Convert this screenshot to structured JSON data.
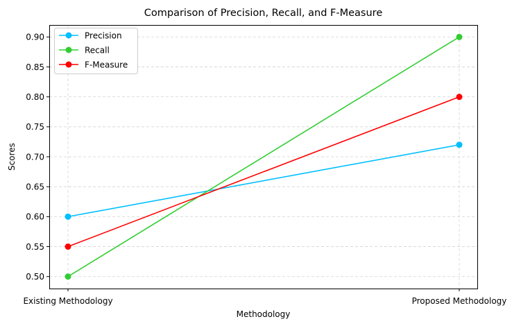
{
  "chart_data": {
    "type": "line",
    "title": "Comparison of Precision, Recall, and F-Measure",
    "xlabel": "Methodology",
    "ylabel": "Scores",
    "categories": [
      "Existing Methodology",
      "Proposed Methodology"
    ],
    "ylim": [
      0.48,
      0.92
    ],
    "yticks": [
      "0.50",
      "0.55",
      "0.60",
      "0.65",
      "0.70",
      "0.75",
      "0.80",
      "0.85",
      "0.90"
    ],
    "grid": true,
    "legend_position": "top-left",
    "series": [
      {
        "name": "Precision",
        "color": "#00bfff",
        "values": [
          0.6,
          0.72
        ]
      },
      {
        "name": "Recall",
        "color": "#32cd32",
        "values": [
          0.5,
          0.9
        ]
      },
      {
        "name": "F-Measure",
        "color": "#ff0000",
        "values": [
          0.55,
          0.8
        ]
      }
    ]
  }
}
